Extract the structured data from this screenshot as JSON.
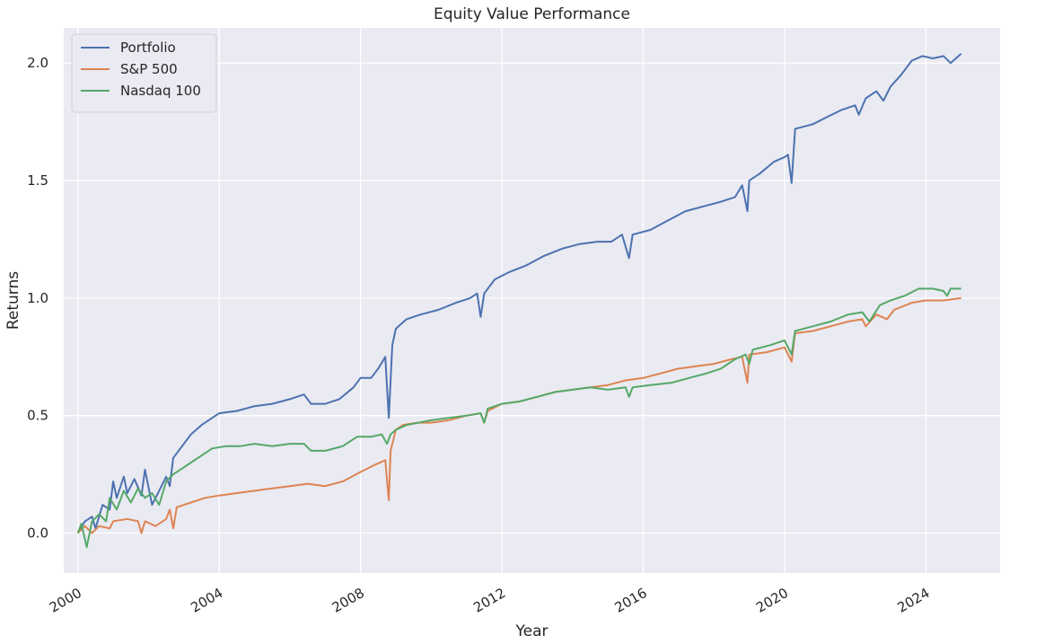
{
  "chart_data": {
    "type": "line",
    "title": "Equity Value Performance",
    "xlabel": "Year",
    "ylabel": "Returns",
    "xlim": [
      1999.6,
      2026.1
    ],
    "ylim": [
      -0.17,
      2.15
    ],
    "x_ticks": [
      2000,
      2004,
      2008,
      2012,
      2016,
      2020,
      2024
    ],
    "x_tick_labels": [
      "2000",
      "2004",
      "2008",
      "2012",
      "2016",
      "2020",
      "2024"
    ],
    "y_ticks": [
      0.0,
      0.5,
      1.0,
      1.5,
      2.0
    ],
    "y_tick_labels": [
      "0.0",
      "0.5",
      "1.0",
      "1.5",
      "2.0"
    ],
    "grid": true,
    "legend_position": "top-left",
    "background": "#eaeaf2",
    "series": [
      {
        "name": "Portfolio",
        "color": "#4c72b0",
        "points": [
          [
            2000.0,
            0.0
          ],
          [
            2000.2,
            0.05
          ],
          [
            2000.4,
            0.07
          ],
          [
            2000.5,
            0.02
          ],
          [
            2000.7,
            0.12
          ],
          [
            2000.9,
            0.1
          ],
          [
            2001.0,
            0.22
          ],
          [
            2001.1,
            0.15
          ],
          [
            2001.3,
            0.24
          ],
          [
            2001.4,
            0.17
          ],
          [
            2001.6,
            0.23
          ],
          [
            2001.8,
            0.16
          ],
          [
            2001.9,
            0.27
          ],
          [
            2002.1,
            0.12
          ],
          [
            2002.3,
            0.18
          ],
          [
            2002.5,
            0.24
          ],
          [
            2002.6,
            0.2
          ],
          [
            2002.7,
            0.32
          ],
          [
            2002.9,
            0.36
          ],
          [
            2003.2,
            0.42
          ],
          [
            2003.5,
            0.46
          ],
          [
            2003.8,
            0.49
          ],
          [
            2004.0,
            0.51
          ],
          [
            2004.5,
            0.52
          ],
          [
            2005.0,
            0.54
          ],
          [
            2005.5,
            0.55
          ],
          [
            2006.0,
            0.57
          ],
          [
            2006.4,
            0.59
          ],
          [
            2006.6,
            0.55
          ],
          [
            2007.0,
            0.55
          ],
          [
            2007.4,
            0.57
          ],
          [
            2007.8,
            0.62
          ],
          [
            2008.0,
            0.66
          ],
          [
            2008.3,
            0.66
          ],
          [
            2008.5,
            0.7
          ],
          [
            2008.7,
            0.75
          ],
          [
            2008.8,
            0.49
          ],
          [
            2008.9,
            0.8
          ],
          [
            2009.0,
            0.87
          ],
          [
            2009.3,
            0.91
          ],
          [
            2009.7,
            0.93
          ],
          [
            2010.2,
            0.95
          ],
          [
            2010.7,
            0.98
          ],
          [
            2011.1,
            1.0
          ],
          [
            2011.3,
            1.02
          ],
          [
            2011.4,
            0.92
          ],
          [
            2011.5,
            1.02
          ],
          [
            2011.8,
            1.08
          ],
          [
            2012.2,
            1.11
          ],
          [
            2012.7,
            1.14
          ],
          [
            2013.2,
            1.18
          ],
          [
            2013.7,
            1.21
          ],
          [
            2014.2,
            1.23
          ],
          [
            2014.7,
            1.24
          ],
          [
            2015.1,
            1.24
          ],
          [
            2015.4,
            1.27
          ],
          [
            2015.6,
            1.17
          ],
          [
            2015.7,
            1.27
          ],
          [
            2016.2,
            1.29
          ],
          [
            2016.7,
            1.33
          ],
          [
            2017.2,
            1.37
          ],
          [
            2017.7,
            1.39
          ],
          [
            2018.2,
            1.41
          ],
          [
            2018.6,
            1.43
          ],
          [
            2018.8,
            1.48
          ],
          [
            2018.95,
            1.37
          ],
          [
            2019.0,
            1.5
          ],
          [
            2019.3,
            1.53
          ],
          [
            2019.7,
            1.58
          ],
          [
            2020.0,
            1.6
          ],
          [
            2020.1,
            1.61
          ],
          [
            2020.2,
            1.49
          ],
          [
            2020.3,
            1.72
          ],
          [
            2020.8,
            1.74
          ],
          [
            2021.2,
            1.77
          ],
          [
            2021.6,
            1.8
          ],
          [
            2022.0,
            1.82
          ],
          [
            2022.1,
            1.78
          ],
          [
            2022.3,
            1.85
          ],
          [
            2022.6,
            1.88
          ],
          [
            2022.8,
            1.84
          ],
          [
            2023.0,
            1.9
          ],
          [
            2023.3,
            1.95
          ],
          [
            2023.6,
            2.01
          ],
          [
            2023.9,
            2.03
          ],
          [
            2024.2,
            2.02
          ],
          [
            2024.5,
            2.03
          ],
          [
            2024.7,
            2.0
          ],
          [
            2025.0,
            2.04
          ]
        ]
      },
      {
        "name": "S&P 500",
        "color": "#dd8452",
        "points": [
          [
            2000.0,
            0.0
          ],
          [
            2000.2,
            0.03
          ],
          [
            2000.4,
            0.0
          ],
          [
            2000.6,
            0.03
          ],
          [
            2000.9,
            0.02
          ],
          [
            2001.0,
            0.05
          ],
          [
            2001.4,
            0.06
          ],
          [
            2001.7,
            0.05
          ],
          [
            2001.8,
            0.0
          ],
          [
            2001.9,
            0.05
          ],
          [
            2002.2,
            0.03
          ],
          [
            2002.5,
            0.06
          ],
          [
            2002.6,
            0.1
          ],
          [
            2002.7,
            0.02
          ],
          [
            2002.8,
            0.11
          ],
          [
            2003.2,
            0.13
          ],
          [
            2003.6,
            0.15
          ],
          [
            2004.0,
            0.16
          ],
          [
            2004.5,
            0.17
          ],
          [
            2005.0,
            0.18
          ],
          [
            2005.5,
            0.19
          ],
          [
            2006.0,
            0.2
          ],
          [
            2006.5,
            0.21
          ],
          [
            2007.0,
            0.2
          ],
          [
            2007.5,
            0.22
          ],
          [
            2008.0,
            0.26
          ],
          [
            2008.4,
            0.29
          ],
          [
            2008.7,
            0.31
          ],
          [
            2008.8,
            0.14
          ],
          [
            2008.85,
            0.35
          ],
          [
            2009.0,
            0.44
          ],
          [
            2009.2,
            0.46
          ],
          [
            2009.6,
            0.47
          ],
          [
            2010.0,
            0.47
          ],
          [
            2010.5,
            0.48
          ],
          [
            2011.0,
            0.5
          ],
          [
            2011.4,
            0.51
          ],
          [
            2011.5,
            0.47
          ],
          [
            2011.6,
            0.52
          ],
          [
            2012.0,
            0.55
          ],
          [
            2012.5,
            0.56
          ],
          [
            2013.0,
            0.58
          ],
          [
            2013.5,
            0.6
          ],
          [
            2014.0,
            0.61
          ],
          [
            2014.5,
            0.62
          ],
          [
            2015.0,
            0.63
          ],
          [
            2015.5,
            0.65
          ],
          [
            2016.0,
            0.66
          ],
          [
            2016.5,
            0.68
          ],
          [
            2017.0,
            0.7
          ],
          [
            2017.5,
            0.71
          ],
          [
            2018.0,
            0.72
          ],
          [
            2018.5,
            0.74
          ],
          [
            2018.8,
            0.75
          ],
          [
            2018.95,
            0.64
          ],
          [
            2019.0,
            0.76
          ],
          [
            2019.5,
            0.77
          ],
          [
            2020.0,
            0.79
          ],
          [
            2020.2,
            0.73
          ],
          [
            2020.3,
            0.85
          ],
          [
            2020.8,
            0.86
          ],
          [
            2021.3,
            0.88
          ],
          [
            2021.8,
            0.9
          ],
          [
            2022.2,
            0.91
          ],
          [
            2022.3,
            0.88
          ],
          [
            2022.6,
            0.93
          ],
          [
            2022.9,
            0.91
          ],
          [
            2023.1,
            0.95
          ],
          [
            2023.6,
            0.98
          ],
          [
            2024.0,
            0.99
          ],
          [
            2024.5,
            0.99
          ],
          [
            2025.0,
            1.0
          ]
        ]
      },
      {
        "name": "Nasdaq 100",
        "color": "#55a868",
        "points": [
          [
            2000.0,
            0.0
          ],
          [
            2000.1,
            0.04
          ],
          [
            2000.25,
            -0.06
          ],
          [
            2000.4,
            0.05
          ],
          [
            2000.6,
            0.08
          ],
          [
            2000.8,
            0.05
          ],
          [
            2000.9,
            0.15
          ],
          [
            2001.1,
            0.1
          ],
          [
            2001.3,
            0.18
          ],
          [
            2001.5,
            0.13
          ],
          [
            2001.7,
            0.19
          ],
          [
            2001.9,
            0.15
          ],
          [
            2002.1,
            0.17
          ],
          [
            2002.3,
            0.12
          ],
          [
            2002.5,
            0.22
          ],
          [
            2002.7,
            0.25
          ],
          [
            2002.9,
            0.27
          ],
          [
            2003.2,
            0.3
          ],
          [
            2003.5,
            0.33
          ],
          [
            2003.8,
            0.36
          ],
          [
            2004.2,
            0.37
          ],
          [
            2004.6,
            0.37
          ],
          [
            2005.0,
            0.38
          ],
          [
            2005.5,
            0.37
          ],
          [
            2006.0,
            0.38
          ],
          [
            2006.4,
            0.38
          ],
          [
            2006.6,
            0.35
          ],
          [
            2007.0,
            0.35
          ],
          [
            2007.5,
            0.37
          ],
          [
            2007.9,
            0.41
          ],
          [
            2008.3,
            0.41
          ],
          [
            2008.6,
            0.42
          ],
          [
            2008.75,
            0.38
          ],
          [
            2008.85,
            0.42
          ],
          [
            2009.0,
            0.44
          ],
          [
            2009.3,
            0.46
          ],
          [
            2010.0,
            0.48
          ],
          [
            2010.5,
            0.49
          ],
          [
            2011.0,
            0.5
          ],
          [
            2011.4,
            0.51
          ],
          [
            2011.5,
            0.47
          ],
          [
            2011.6,
            0.53
          ],
          [
            2012.0,
            0.55
          ],
          [
            2012.5,
            0.56
          ],
          [
            2013.0,
            0.58
          ],
          [
            2013.5,
            0.6
          ],
          [
            2014.0,
            0.61
          ],
          [
            2014.5,
            0.62
          ],
          [
            2015.0,
            0.61
          ],
          [
            2015.5,
            0.62
          ],
          [
            2015.6,
            0.58
          ],
          [
            2015.7,
            0.62
          ],
          [
            2016.2,
            0.63
          ],
          [
            2016.8,
            0.64
          ],
          [
            2017.3,
            0.66
          ],
          [
            2017.8,
            0.68
          ],
          [
            2018.2,
            0.7
          ],
          [
            2018.6,
            0.74
          ],
          [
            2018.9,
            0.76
          ],
          [
            2019.0,
            0.72
          ],
          [
            2019.1,
            0.78
          ],
          [
            2019.6,
            0.8
          ],
          [
            2020.0,
            0.82
          ],
          [
            2020.2,
            0.76
          ],
          [
            2020.3,
            0.86
          ],
          [
            2020.8,
            0.88
          ],
          [
            2021.3,
            0.9
          ],
          [
            2021.8,
            0.93
          ],
          [
            2022.2,
            0.94
          ],
          [
            2022.4,
            0.9
          ],
          [
            2022.7,
            0.97
          ],
          [
            2023.0,
            0.99
          ],
          [
            2023.4,
            1.01
          ],
          [
            2023.8,
            1.04
          ],
          [
            2024.2,
            1.04
          ],
          [
            2024.5,
            1.03
          ],
          [
            2024.6,
            1.01
          ],
          [
            2024.7,
            1.04
          ],
          [
            2025.0,
            1.04
          ]
        ]
      }
    ]
  }
}
